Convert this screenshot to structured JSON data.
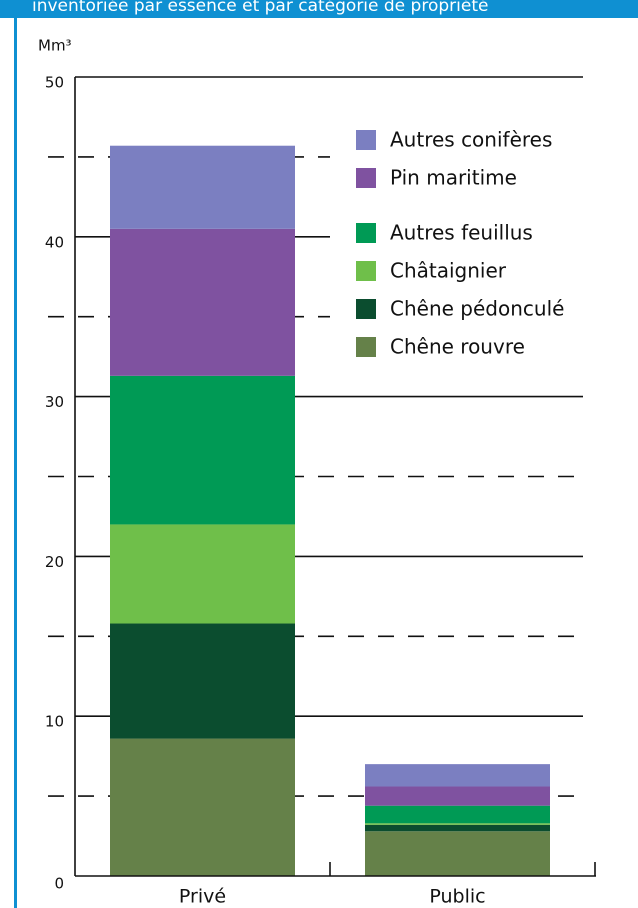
{
  "chart_data": {
    "type": "stacked_bar",
    "title": "inventoriée par essence et par catégorie de propriété",
    "y_label": "Mm³",
    "categories": [
      "Privé",
      "Public"
    ],
    "series": [
      {
        "name": "Chêne rouvre",
        "color": "#658149",
        "values": [
          8.6,
          2.8
        ]
      },
      {
        "name": "Chêne pédonculé",
        "color": "#0b4d2f",
        "values": [
          7.2,
          0.4
        ]
      },
      {
        "name": "Châtaignier",
        "color": "#6fbf4a",
        "values": [
          6.2,
          0.1
        ]
      },
      {
        "name": "Autres feuillus",
        "color": "#009a55",
        "values": [
          9.3,
          1.1
        ]
      },
      {
        "name": "Pin maritime",
        "color": "#7f52a0",
        "values": [
          9.2,
          1.2
        ]
      },
      {
        "name": "Autres conifères",
        "color": "#7b7fc1",
        "values": [
          5.2,
          1.4
        ]
      }
    ],
    "ylim": [
      0,
      50
    ],
    "yticks": [
      0,
      10,
      20,
      30,
      40,
      50
    ],
    "minor_yticks": [
      5,
      15,
      25,
      35,
      45
    ],
    "grid": true
  }
}
